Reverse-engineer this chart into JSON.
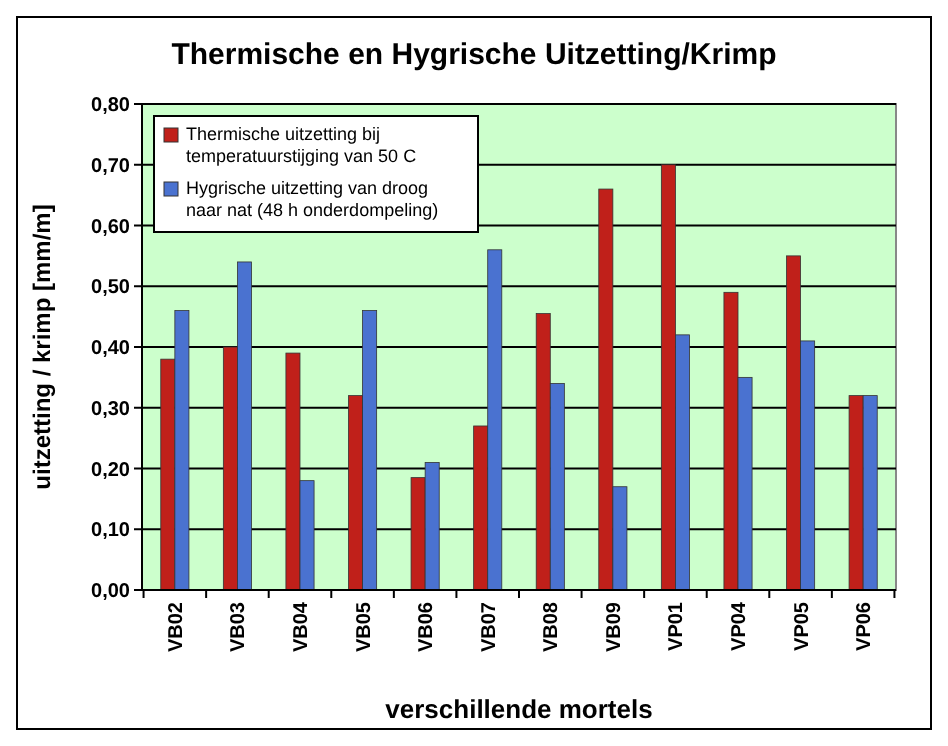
{
  "chart_data": {
    "type": "bar",
    "title": "Thermische en Hygrische Uitzetting/Krimp",
    "xlabel": "verschillende mortels",
    "ylabel": "uitzetting / krimp  [mm/m]",
    "categories": [
      "VB02",
      "VB03",
      "VB04",
      "VB05",
      "VB06",
      "VB07",
      "VB08",
      "VB09",
      "VP01",
      "VP04",
      "VP05",
      "VP06"
    ],
    "series": [
      {
        "name": "Thermische uitzetting bij temperatuurstijging van 50 C",
        "color": "#c0201a",
        "values": [
          0.38,
          0.4,
          0.39,
          0.32,
          0.185,
          0.27,
          0.455,
          0.66,
          0.7,
          0.49,
          0.55,
          0.32
        ]
      },
      {
        "name": "Hygrische uitzetting van droog naar nat (48 h onderdompeling)",
        "color": "#4a72d0",
        "values": [
          0.46,
          0.54,
          0.18,
          0.46,
          0.21,
          0.56,
          0.34,
          0.17,
          0.42,
          0.35,
          0.41,
          0.32
        ]
      }
    ],
    "ylim": [
      0,
      0.8
    ],
    "yticks": [
      {
        "value": 0,
        "label": "0,00"
      },
      {
        "value": 0.1,
        "label": "0,10"
      },
      {
        "value": 0.2,
        "label": "0,20"
      },
      {
        "value": 0.3,
        "label": "0,30"
      },
      {
        "value": 0.4,
        "label": "0,40"
      },
      {
        "value": 0.5,
        "label": "0,50"
      },
      {
        "value": 0.6,
        "label": "0,60"
      },
      {
        "value": 0.7,
        "label": "0,70"
      },
      {
        "value": 0.8,
        "label": "0,80"
      }
    ],
    "grid": "y",
    "legend": "top left"
  }
}
